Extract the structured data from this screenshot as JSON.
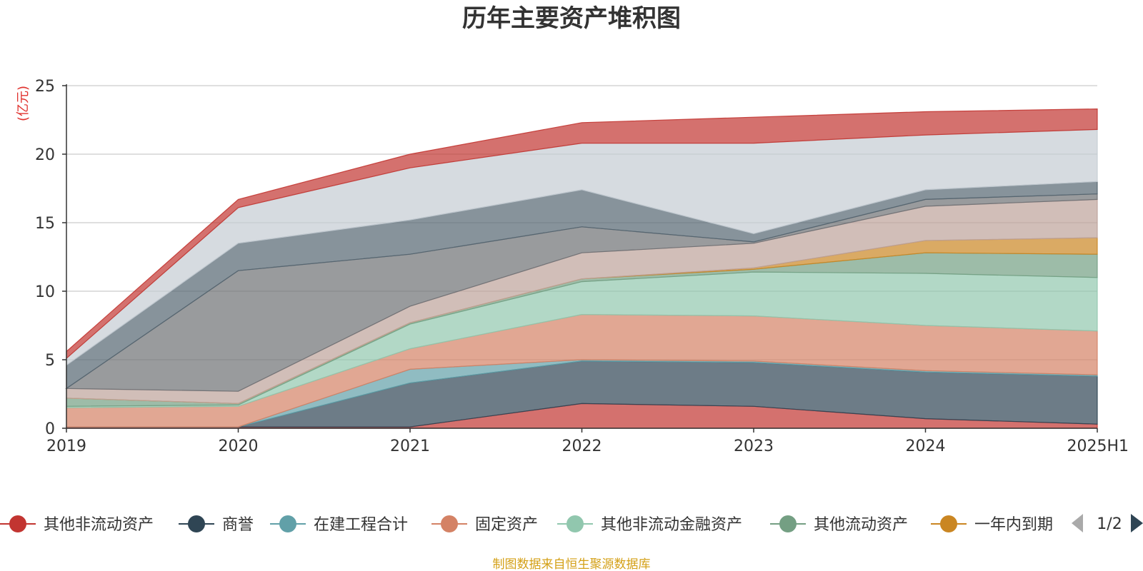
{
  "chart_data": {
    "type": "area",
    "stacked": true,
    "title": "历年主要资产堆积图",
    "unit": "(亿元)",
    "categories": [
      "2019",
      "2020",
      "2021",
      "2022",
      "2023",
      "2024",
      "2025H1"
    ],
    "ylim": [
      0,
      25
    ],
    "yticks": [
      0,
      5,
      10,
      15,
      20,
      25
    ],
    "grid": true,
    "legend_position": "bottom",
    "legend_page": "1/2",
    "source_note": "制图数据来自恒生聚源数据库",
    "series": [
      {
        "name": "其他非流动资产",
        "color": "#c23531",
        "values": [
          0.1,
          0.1,
          0.1,
          1.8,
          1.6,
          0.7,
          0.3
        ]
      },
      {
        "name": "商誉",
        "color": "#2f4554",
        "values": [
          0.0,
          0.0,
          3.2,
          3.1,
          3.2,
          3.4,
          3.5
        ]
      },
      {
        "name": "在建工程合计",
        "color": "#61a0a8",
        "values": [
          0.0,
          0.0,
          1.0,
          0.1,
          0.1,
          0.1,
          0.1
        ]
      },
      {
        "name": "固定资产",
        "color": "#d48265",
        "values": [
          1.4,
          1.5,
          1.5,
          3.3,
          3.3,
          3.3,
          3.2
        ]
      },
      {
        "name": "其他非流动金融资产",
        "color": "#91c7ae",
        "values": [
          0.1,
          0.1,
          1.8,
          2.4,
          3.2,
          3.8,
          3.9
        ]
      },
      {
        "name": "其他流动资产",
        "color": "#749f83",
        "values": [
          0.6,
          0.1,
          0.1,
          0.2,
          0.2,
          1.5,
          1.7
        ]
      },
      {
        "name": "一年内到期",
        "color": "#ca8622",
        "values": [
          0.0,
          0.0,
          0.0,
          0.0,
          0.1,
          0.9,
          1.2
        ]
      },
      {
        "name": "",
        "color": "#bda29a",
        "values": [
          0.7,
          0.9,
          1.2,
          1.9,
          1.8,
          2.5,
          2.8
        ]
      },
      {
        "name": "",
        "color": "#6e7074",
        "values": [
          0.0,
          8.8,
          3.8,
          1.9,
          0.1,
          0.5,
          0.4
        ]
      },
      {
        "name": "",
        "color": "#546570",
        "values": [
          1.7,
          2.0,
          2.5,
          2.7,
          0.6,
          0.7,
          0.9
        ]
      },
      {
        "name": "",
        "color": "#c4ccd3",
        "values": [
          0.5,
          2.6,
          3.8,
          3.4,
          6.6,
          4.0,
          3.8
        ]
      },
      {
        "name": "",
        "color": "#c23531",
        "values": [
          0.5,
          0.6,
          1.0,
          1.5,
          1.9,
          1.7,
          1.5
        ]
      }
    ]
  }
}
